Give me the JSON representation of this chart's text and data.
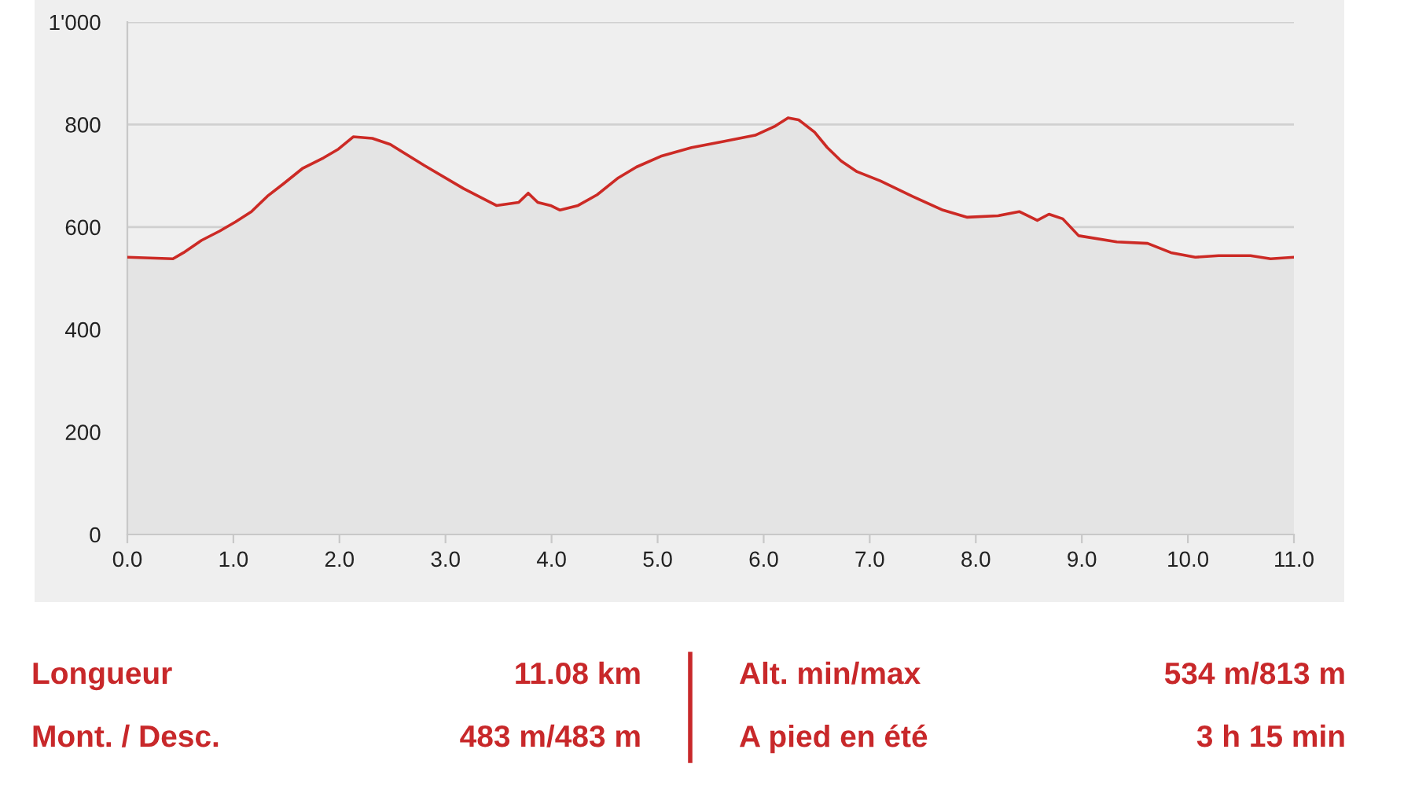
{
  "chart_data": [
    {
      "type": "area",
      "x": [
        0,
        0.43,
        0.53,
        0.7,
        0.87,
        1.02,
        1.17,
        1.32,
        1.47,
        1.65,
        1.85,
        1.99,
        2.13,
        2.31,
        2.48,
        2.8,
        3.17,
        3.48,
        3.69,
        3.78,
        3.87,
        3.99,
        4.08,
        4.25,
        4.43,
        4.63,
        4.8,
        5.03,
        5.32,
        5.62,
        5.92,
        6.11,
        6.23,
        6.33,
        6.48,
        6.6,
        6.73,
        6.88,
        7.1,
        7.4,
        7.69,
        7.92,
        8.21,
        8.41,
        8.58,
        8.69,
        8.82,
        8.97,
        9.33,
        9.62,
        9.84,
        10.07,
        10.29,
        10.59,
        10.78,
        11.0
      ],
      "series": [
        {
          "color": "#cc2a25",
          "values": [
            541,
            538,
            550,
            574,
            592,
            610,
            630,
            660,
            684,
            714,
            735,
            752,
            776,
            773,
            761,
            720,
            675,
            642,
            648,
            666,
            648,
            642,
            633,
            642,
            663,
            696,
            717,
            738,
            755,
            767,
            779,
            797,
            813,
            809,
            785,
            755,
            729,
            708,
            690,
            660,
            633,
            619,
            622,
            630,
            613,
            625,
            616,
            583,
            571,
            568,
            550,
            541,
            544,
            544,
            538,
            541
          ]
        }
      ],
      "xlim": [
        0,
        11.0
      ],
      "xticks": [
        {
          "value": 0,
          "label": "0.0"
        },
        {
          "value": 1,
          "label": "1.0"
        },
        {
          "value": 2,
          "label": "2.0"
        },
        {
          "value": 3,
          "label": "3.0"
        },
        {
          "value": 4,
          "label": "4.0"
        },
        {
          "value": 5,
          "label": "5.0"
        },
        {
          "value": 6,
          "label": "6.0"
        },
        {
          "value": 7,
          "label": "7.0"
        },
        {
          "value": 8,
          "label": "8.0"
        },
        {
          "value": 9,
          "label": "9.0"
        },
        {
          "value": 10,
          "label": "10.0"
        },
        {
          "value": 11,
          "label": "11.0"
        }
      ],
      "ylim": [
        0,
        1000
      ],
      "yticks": [
        0,
        200,
        400,
        600,
        800,
        {
          "value": 1000,
          "label": "1'000"
        }
      ],
      "grid": "y"
    },
    {
      "type": "other",
      "annotations": [
        "Longueur",
        "11.08 km",
        "Mont. / Desc.",
        "483 m/483 m",
        "Alt. min/max",
        "534 m/813 m",
        "A pied en été",
        "3 h 15 min"
      ]
    }
  ]
}
